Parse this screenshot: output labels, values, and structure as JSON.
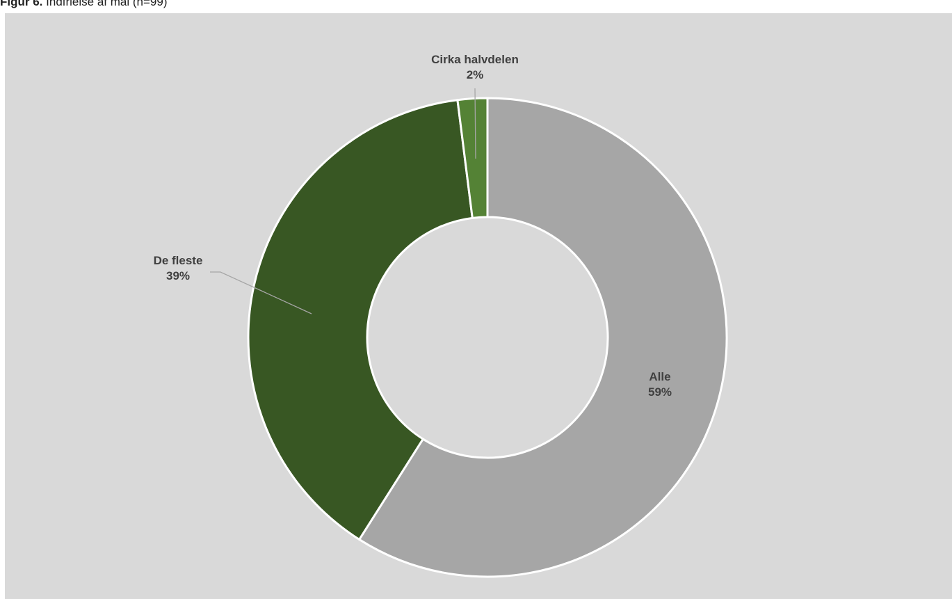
{
  "caption": {
    "prefix": "Figur 6.",
    "text": "Indfrielse af mål (n=99)"
  },
  "chart_data": {
    "type": "pie",
    "variant": "doughnut",
    "categories": [
      "Alle",
      "De fleste",
      "Cirka halvdelen"
    ],
    "values": [
      59,
      39,
      2
    ],
    "value_labels": [
      "59%",
      "39%",
      "2%"
    ],
    "colors": [
      "#a6a6a6",
      "#385723",
      "#548235"
    ],
    "background": "#d9d9d9",
    "legend": "none"
  }
}
